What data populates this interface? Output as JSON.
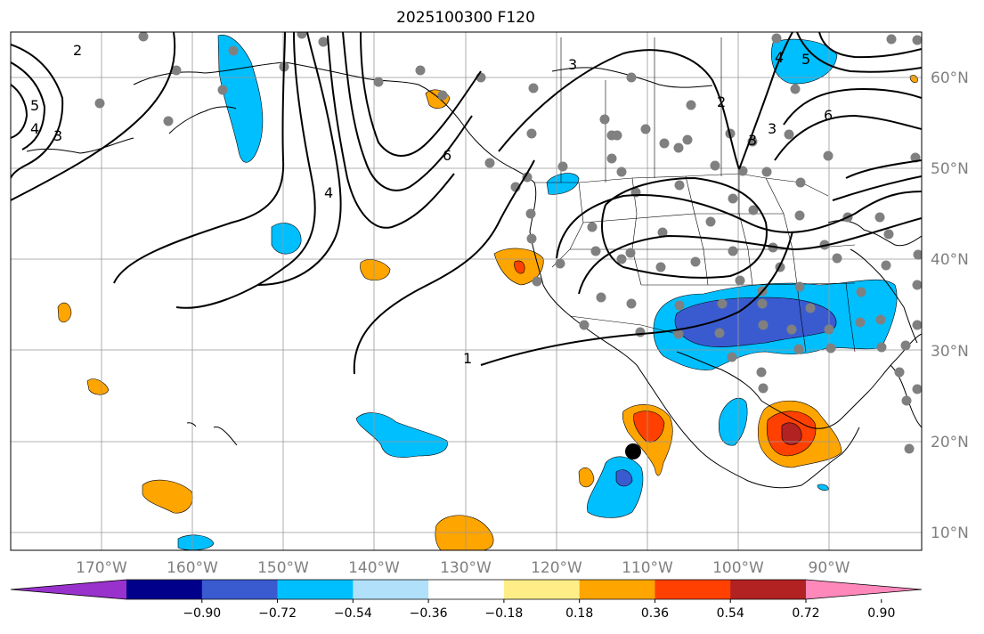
{
  "title": "2025100300 F120",
  "map": {
    "lat_labels": [
      "60°N",
      "50°N",
      "40°N",
      "30°N",
      "20°N",
      "10°N"
    ],
    "lon_labels": [
      "170°W",
      "160°W",
      "150°W",
      "140°W",
      "130°W",
      "120°W",
      "110°W",
      "100°W",
      "90°W"
    ],
    "contour_labels": [
      "2",
      "5",
      "4",
      "3",
      "4",
      "3",
      "6",
      "3",
      "3",
      "2",
      "4",
      "6",
      "1",
      "5"
    ],
    "marker": "storm-center-dot"
  },
  "colorbar": {
    "colors": [
      "#9932cc",
      "#00008b",
      "#3a5bd0",
      "#00bfff",
      "#b0e0fa",
      "#ffffff",
      "#ffee88",
      "#ffa500",
      "#ff4000",
      "#b22222",
      "#ff88bb"
    ],
    "tick_labels": [
      "−0.90",
      "−0.72",
      "−0.54",
      "−0.36",
      "−0.18",
      "0.18",
      "0.36",
      "0.54",
      "0.72",
      "0.90"
    ]
  }
}
